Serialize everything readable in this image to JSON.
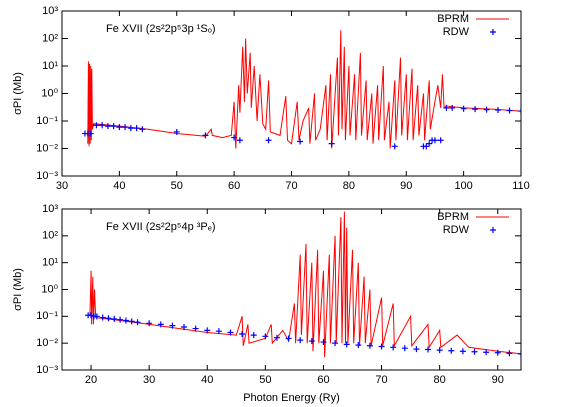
{
  "chart_data": [
    {
      "type": "line",
      "title": "Fe XVII (2s²2p⁵3p ¹Sₒ)",
      "ylabel": "σPI (Mb)",
      "log_y": true,
      "legend": "top-right",
      "xlim": [
        30,
        110
      ],
      "xticks": [
        30,
        40,
        50,
        60,
        70,
        80,
        90,
        100,
        110
      ],
      "ylim": [
        0.001,
        1000
      ],
      "yticks": [
        {
          "value": 0.001,
          "label": "10⁻³"
        },
        {
          "value": 0.01,
          "label": "10⁻²"
        },
        {
          "value": 0.1,
          "label": "10⁻¹"
        },
        {
          "value": 1,
          "label": "10⁰"
        },
        {
          "value": 10,
          "label": "10¹"
        },
        {
          "value": 100,
          "label": "10²"
        },
        {
          "value": 1000,
          "label": "10³"
        }
      ],
      "series": [
        {
          "name": "BPRM",
          "color": "#ff0000",
          "mode": "line",
          "x": [
            34.5,
            34.6,
            34.7,
            34.8,
            34.9,
            35,
            35.1,
            35.2,
            35.3,
            35.5,
            40,
            45,
            50,
            55,
            56,
            56.2,
            58,
            59.5,
            60,
            60.3,
            60.8,
            61,
            61.5,
            61.8,
            62,
            62.3,
            62.8,
            63,
            63.5,
            64,
            64.5,
            65,
            65.5,
            66,
            66.3,
            68,
            69,
            69.3,
            70,
            71,
            71.3,
            72,
            73,
            73.2,
            74,
            74.2,
            75,
            76,
            76.2,
            76.8,
            77,
            78,
            78.2,
            78.6,
            78.8,
            79.2,
            79.4,
            80,
            80.2,
            81,
            81.2,
            82,
            82.2,
            83,
            83.2,
            84,
            84.2,
            85,
            85.2,
            86,
            86.2,
            87,
            87.2,
            88,
            88.2,
            89,
            89.2,
            90,
            90.2,
            91,
            91.2,
            92,
            92.2,
            93,
            93.2,
            94,
            94.2,
            95,
            95.5,
            96,
            96.3,
            96.6,
            97,
            100,
            105,
            110
          ],
          "values": [
            0.015,
            15,
            0.012,
            12,
            0.015,
            10,
            0.02,
            8,
            0.05,
            0.08,
            0.065,
            0.05,
            0.035,
            0.028,
            0.05,
            0.03,
            0.025,
            0.03,
            0.5,
            0.01,
            2,
            0.2,
            50,
            0.5,
            100,
            1,
            30,
            0.3,
            10,
            0.1,
            5,
            0.08,
            0.05,
            3,
            0.04,
            0.03,
            0.8,
            0.02,
            0.015,
            0.5,
            0.02,
            0.1,
            0.3,
            0.015,
            1,
            0.02,
            0.05,
            2,
            0.02,
            5,
            0.01,
            20,
            0.03,
            200,
            0.05,
            50,
            0.02,
            10,
            0.03,
            5,
            0.02,
            30,
            0.03,
            3,
            0.02,
            1,
            0.015,
            2,
            0.02,
            10,
            0.02,
            0.5,
            0.01,
            3,
            0.02,
            20,
            0.03,
            5,
            0.02,
            8,
            0.02,
            2,
            0.03,
            1,
            0.02,
            3,
            0.05,
            0.5,
            2,
            0.3,
            5,
            0.3,
            0.35,
            0.3,
            0.27,
            0.23
          ]
        },
        {
          "name": "RDW",
          "color": "#0000ff",
          "mode": "points",
          "x": [
            34,
            34.5,
            35,
            36,
            37,
            38,
            39,
            40,
            41,
            42,
            43,
            44,
            50,
            55,
            60,
            61,
            66,
            71.5,
            77,
            88,
            93,
            93.5,
            94,
            94.5,
            95,
            96,
            97,
            98,
            100,
            102,
            104,
            106,
            108,
            110
          ],
          "values": [
            0.035,
            0.035,
            0.035,
            0.07,
            0.07,
            0.065,
            0.065,
            0.06,
            0.06,
            0.055,
            0.055,
            0.05,
            0.04,
            0.03,
            0.025,
            0.02,
            0.02,
            0.018,
            0.015,
            0.012,
            0.012,
            0.012,
            0.015,
            0.02,
            0.02,
            0.02,
            0.3,
            0.3,
            0.28,
            0.27,
            0.26,
            0.25,
            0.24,
            0.23
          ]
        }
      ]
    },
    {
      "type": "line",
      "title": "Fe XVII (2s²2p⁵4p ³Pₑ)",
      "ylabel": "σPI (Mb)",
      "xlabel": "Photon Energy (Ry)",
      "log_y": true,
      "legend": "top-right",
      "xlim": [
        15,
        94
      ],
      "xticks": [
        20,
        30,
        40,
        50,
        60,
        70,
        80,
        90
      ],
      "ylim": [
        0.001,
        1000
      ],
      "yticks": [
        {
          "value": 0.001,
          "label": "10⁻³"
        },
        {
          "value": 0.01,
          "label": "10⁻²"
        },
        {
          "value": 0.1,
          "label": "10⁻¹"
        },
        {
          "value": 1,
          "label": "10⁰"
        },
        {
          "value": 10,
          "label": "10¹"
        },
        {
          "value": 100,
          "label": "10²"
        },
        {
          "value": 1000,
          "label": "10³"
        }
      ],
      "series": [
        {
          "name": "BPRM",
          "color": "#ff0000",
          "mode": "line",
          "x": [
            19.8,
            20,
            20.1,
            20.3,
            20.4,
            20.6,
            20.8,
            25,
            30,
            40,
            45,
            46,
            46.2,
            47,
            47.2,
            50,
            51,
            51.2,
            53,
            54,
            55,
            55.2,
            56,
            56.2,
            57,
            57.2,
            58,
            58.2,
            59,
            59.2,
            60,
            60.2,
            61,
            61.2,
            62,
            62.2,
            63,
            63.2,
            63.6,
            63.8,
            64,
            64.2,
            65,
            65.2,
            66,
            66.2,
            67,
            67.2,
            68,
            68.2,
            70,
            70.2,
            72,
            72.2,
            75,
            75.2,
            78,
            78.2,
            80,
            80.2,
            83,
            85,
            90,
            94
          ],
          "values": [
            0.1,
            5,
            0.05,
            3,
            0.05,
            1,
            0.09,
            0.07,
            0.05,
            0.025,
            0.02,
            0.1,
            0.008,
            0.05,
            0.01,
            0.015,
            0.05,
            0.01,
            0.03,
            0.012,
            0.3,
            0.01,
            20,
            0.02,
            50,
            0.01,
            10,
            0.005,
            30,
            0.01,
            5,
            0.003,
            20,
            0.01,
            100,
            0.01,
            500,
            0.01,
            800,
            0.01,
            200,
            0.01,
            30,
            0.01,
            10,
            0.008,
            3,
            0.01,
            1,
            0.008,
            0.5,
            0.008,
            0.3,
            0.008,
            0.1,
            0.008,
            0.05,
            0.007,
            0.03,
            0.007,
            0.02,
            0.007,
            0.005,
            0.004
          ]
        },
        {
          "name": "RDW",
          "color": "#0000ff",
          "mode": "points",
          "x": [
            19.5,
            20,
            20.5,
            21,
            22,
            23,
            24,
            25,
            26,
            27,
            28,
            30,
            32,
            34,
            36,
            38,
            40,
            42,
            44,
            46,
            48,
            50,
            52,
            54,
            56,
            58,
            60,
            62,
            64,
            66,
            68,
            70,
            72,
            74,
            76,
            78,
            80,
            82,
            84,
            86,
            88,
            90,
            92,
            94
          ],
          "values": [
            0.11,
            0.11,
            0.1,
            0.1,
            0.09,
            0.085,
            0.08,
            0.075,
            0.07,
            0.065,
            0.06,
            0.055,
            0.05,
            0.045,
            0.04,
            0.035,
            0.03,
            0.028,
            0.025,
            0.022,
            0.02,
            0.018,
            0.016,
            0.015,
            0.013,
            0.012,
            0.011,
            0.01,
            0.009,
            0.0085,
            0.008,
            0.0075,
            0.007,
            0.0065,
            0.006,
            0.0058,
            0.0055,
            0.0052,
            0.005,
            0.0048,
            0.0046,
            0.0044,
            0.0042,
            0.004
          ]
        }
      ]
    }
  ]
}
